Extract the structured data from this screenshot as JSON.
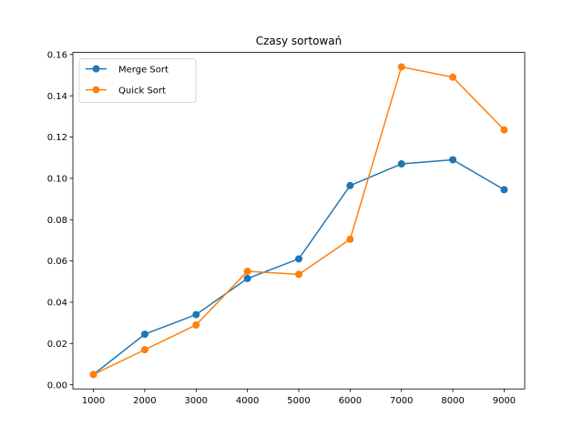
{
  "chart_data": {
    "type": "line",
    "title": "Czasy sortowań",
    "xlabel": "",
    "ylabel": "",
    "x": [
      1000,
      2000,
      3000,
      4000,
      5000,
      6000,
      7000,
      8000,
      9000
    ],
    "xticks": [
      "1000",
      "2000",
      "3000",
      "4000",
      "5000",
      "6000",
      "7000",
      "8000",
      "9000"
    ],
    "xlim": [
      600,
      9400
    ],
    "yticks": [
      "0.00",
      "0.02",
      "0.04",
      "0.06",
      "0.08",
      "0.10",
      "0.12",
      "0.14",
      "0.16"
    ],
    "ylim": [
      -0.002,
      0.161
    ],
    "grid": false,
    "legend_position": "top-left",
    "series": [
      {
        "name": "Merge Sort",
        "color": "#1f77b4",
        "marker": "circle",
        "values": [
          0.005,
          0.0245,
          0.034,
          0.0515,
          0.061,
          0.0965,
          0.107,
          0.109,
          0.0945
        ]
      },
      {
        "name": "Quick Sort",
        "color": "#ff7f0e",
        "marker": "circle",
        "values": [
          0.005,
          0.017,
          0.029,
          0.055,
          0.0535,
          0.0705,
          0.154,
          0.149,
          0.1235
        ]
      }
    ]
  }
}
